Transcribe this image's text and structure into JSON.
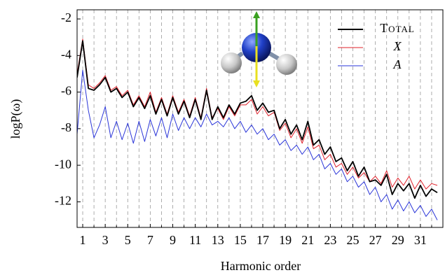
{
  "chart_data": {
    "type": "line",
    "xlabel": "Harmonic order",
    "ylabel": "logP(ω)",
    "x": [
      0.5,
      1,
      1.5,
      2,
      2.5,
      3,
      3.5,
      4,
      4.5,
      5,
      5.5,
      6,
      6.5,
      7,
      7.5,
      8,
      8.5,
      9,
      9.5,
      10,
      10.5,
      11,
      11.5,
      12,
      12.5,
      13,
      13.5,
      14,
      14.5,
      15,
      15.5,
      16,
      16.5,
      17,
      17.5,
      18,
      18.5,
      19,
      19.5,
      20,
      20.5,
      21,
      21.5,
      22,
      22.5,
      23,
      23.5,
      24,
      24.5,
      25,
      25.5,
      26,
      26.5,
      27,
      27.5,
      28,
      28.5,
      29,
      29.5,
      30,
      30.5,
      31,
      31.5,
      32,
      32.5
    ],
    "series": [
      {
        "name": "Total",
        "color": "#000000",
        "values": [
          -5.2,
          -3.2,
          -5.8,
          -5.9,
          -5.6,
          -5.2,
          -6.0,
          -5.8,
          -6.3,
          -6.0,
          -6.8,
          -6.3,
          -6.9,
          -6.2,
          -7.2,
          -6.4,
          -7.3,
          -6.3,
          -7.2,
          -6.5,
          -7.4,
          -6.4,
          -7.5,
          -5.9,
          -7.5,
          -6.8,
          -7.4,
          -6.7,
          -7.2,
          -6.6,
          -6.5,
          -6.2,
          -7.0,
          -6.6,
          -7.1,
          -7.0,
          -8.0,
          -7.5,
          -8.3,
          -7.8,
          -8.6,
          -7.6,
          -8.9,
          -8.6,
          -9.4,
          -9.0,
          -9.8,
          -9.6,
          -10.3,
          -9.8,
          -10.6,
          -10.1,
          -10.9,
          -10.8,
          -11.1,
          -10.5,
          -11.6,
          -11.0,
          -11.4,
          -11.0,
          -11.8,
          -11.1,
          -11.7,
          -11.3,
          -11.5
        ]
      },
      {
        "name": "X",
        "color": "#e0202a",
        "values": [
          -5.0,
          -3.1,
          -5.6,
          -5.8,
          -5.5,
          -5.1,
          -5.9,
          -5.7,
          -6.2,
          -5.9,
          -6.7,
          -6.2,
          -6.8,
          -6.0,
          -7.1,
          -6.3,
          -7.2,
          -6.2,
          -7.1,
          -6.4,
          -7.3,
          -6.3,
          -7.4,
          -5.8,
          -7.4,
          -6.9,
          -7.5,
          -6.8,
          -7.3,
          -6.7,
          -6.7,
          -6.4,
          -7.2,
          -6.8,
          -7.3,
          -7.1,
          -8.1,
          -7.7,
          -8.5,
          -8.0,
          -8.8,
          -7.9,
          -9.1,
          -8.9,
          -9.7,
          -9.4,
          -10.1,
          -9.9,
          -10.5,
          -10.1,
          -10.7,
          -10.4,
          -10.9,
          -10.6,
          -11.0,
          -10.3,
          -11.2,
          -10.7,
          -11.1,
          -10.6,
          -11.3,
          -10.8,
          -11.3,
          -11.0,
          -11.1
        ]
      },
      {
        "name": "A",
        "color": "#2a35d8",
        "values": [
          -8.3,
          -4.8,
          -7.0,
          -8.5,
          -7.8,
          -6.8,
          -8.5,
          -7.6,
          -8.6,
          -7.7,
          -8.8,
          -7.6,
          -8.7,
          -7.5,
          -8.4,
          -7.4,
          -8.5,
          -7.2,
          -8.1,
          -7.4,
          -8.0,
          -7.4,
          -7.9,
          -7.2,
          -7.8,
          -7.6,
          -7.9,
          -7.4,
          -8.0,
          -7.6,
          -8.2,
          -7.8,
          -8.3,
          -8.0,
          -8.6,
          -8.3,
          -8.9,
          -8.6,
          -9.2,
          -8.9,
          -9.4,
          -9.0,
          -9.7,
          -9.4,
          -10.2,
          -9.9,
          -10.5,
          -10.2,
          -10.9,
          -10.6,
          -11.2,
          -10.9,
          -11.6,
          -11.2,
          -12.0,
          -11.6,
          -12.4,
          -11.9,
          -12.5,
          -12.0,
          -12.6,
          -12.2,
          -12.8,
          -12.4,
          -13.0
        ]
      }
    ],
    "xlim": [
      0.5,
      33
    ],
    "ylim": [
      -13.4,
      -1.5
    ],
    "xticks": [
      1,
      3,
      5,
      7,
      9,
      11,
      13,
      15,
      17,
      19,
      21,
      23,
      25,
      27,
      29,
      31
    ],
    "minor_xticks": [
      2,
      4,
      6,
      8,
      10,
      12,
      14,
      16,
      18,
      20,
      22,
      24,
      26,
      28,
      30,
      32
    ],
    "yticks": [
      -12,
      -10,
      -8,
      -6,
      -4,
      -2
    ],
    "grid": "x-dashed",
    "legend": "upper right"
  }
}
